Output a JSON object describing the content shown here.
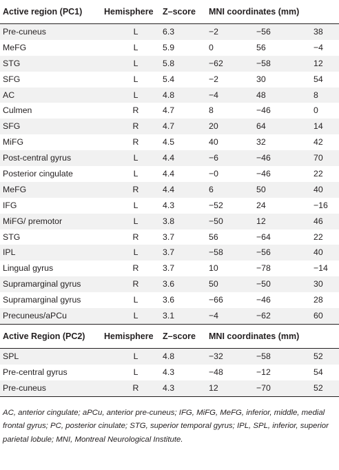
{
  "headers_pc1": {
    "region": "Active region (PC1)",
    "hemisphere": "Hemisphere",
    "zscore": "Z–score",
    "mni": "MNI coordinates (mm)"
  },
  "rows_pc1": [
    {
      "region": "Pre-cuneus",
      "hemi": "L",
      "z": "6.3",
      "x": "−2",
      "y": "−56",
      "zc": "38"
    },
    {
      "region": "MeFG",
      "hemi": "L",
      "z": "5.9",
      "x": "0",
      "y": "56",
      "zc": "−4"
    },
    {
      "region": "STG",
      "hemi": "L",
      "z": "5.8",
      "x": "−62",
      "y": "−58",
      "zc": "12"
    },
    {
      "region": "SFG",
      "hemi": "L",
      "z": "5.4",
      "x": "−2",
      "y": "30",
      "zc": "54"
    },
    {
      "region": "AC",
      "hemi": "L",
      "z": "4.8",
      "x": "−4",
      "y": "48",
      "zc": "8"
    },
    {
      "region": "Culmen",
      "hemi": "R",
      "z": "4.7",
      "x": "8",
      "y": "−46",
      "zc": "0"
    },
    {
      "region": "SFG",
      "hemi": "R",
      "z": "4.7",
      "x": "20",
      "y": "64",
      "zc": "14"
    },
    {
      "region": "MiFG",
      "hemi": "R",
      "z": "4.5",
      "x": "40",
      "y": "32",
      "zc": "42"
    },
    {
      "region": "Post-central gyrus",
      "hemi": "L",
      "z": "4.4",
      "x": "−6",
      "y": "−46",
      "zc": "70"
    },
    {
      "region": "Posterior cingulate",
      "hemi": "L",
      "z": "4.4",
      "x": "−0",
      "y": "−46",
      "zc": "22"
    },
    {
      "region": "MeFG",
      "hemi": "R",
      "z": "4.4",
      "x": "6",
      "y": "50",
      "zc": "40"
    },
    {
      "region": "IFG",
      "hemi": "L",
      "z": "4.3",
      "x": "−52",
      "y": "24",
      "zc": "−16"
    },
    {
      "region": "MiFG/ premotor",
      "hemi": "L",
      "z": "3.8",
      "x": "−50",
      "y": "12",
      "zc": "46"
    },
    {
      "region": "STG",
      "hemi": "R",
      "z": "3.7",
      "x": "56",
      "y": "−64",
      "zc": "22"
    },
    {
      "region": "IPL",
      "hemi": "L",
      "z": "3.7",
      "x": "−58",
      "y": "−56",
      "zc": "40"
    },
    {
      "region": "Lingual gyrus",
      "hemi": "R",
      "z": "3.7",
      "x": "10",
      "y": "−78",
      "zc": "−14"
    },
    {
      "region": "Supramarginal gyrus",
      "hemi": "R",
      "z": "3.6",
      "x": "50",
      "y": "−50",
      "zc": "30"
    },
    {
      "region": "Supramarginal gyrus",
      "hemi": "L",
      "z": "3.6",
      "x": "−66",
      "y": "−46",
      "zc": "28"
    },
    {
      "region": "Precuneus/aPCu",
      "hemi": "L",
      "z": "3.1",
      "x": "−4",
      "y": "−62",
      "zc": "60"
    }
  ],
  "headers_pc2": {
    "region": "Active Region (PC2)",
    "hemisphere": "Hemisphere",
    "zscore": "Z–score",
    "mni": "MNI coordinates (mm)"
  },
  "rows_pc2": [
    {
      "region": "SPL",
      "hemi": "L",
      "z": "4.8",
      "x": "−32",
      "y": "−58",
      "zc": "52"
    },
    {
      "region": "Pre-central gyrus",
      "hemi": "L",
      "z": "4.3",
      "x": "−48",
      "y": "−12",
      "zc": "54"
    },
    {
      "region": "Pre-cuneus",
      "hemi": "R",
      "z": "4.3",
      "x": "12",
      "y": "−70",
      "zc": "52"
    }
  ],
  "footnote": "AC, anterior cingulate; aPCu, anterior pre-cuneus; IFG, MiFG, MeFG, inferior, middle, medial frontal gyrus; PC, posterior cinulate; STG, superior temporal gyrus; IPL, SPL, inferior, superior parietal lobule; MNI, Montreal Neurological Institute."
}
